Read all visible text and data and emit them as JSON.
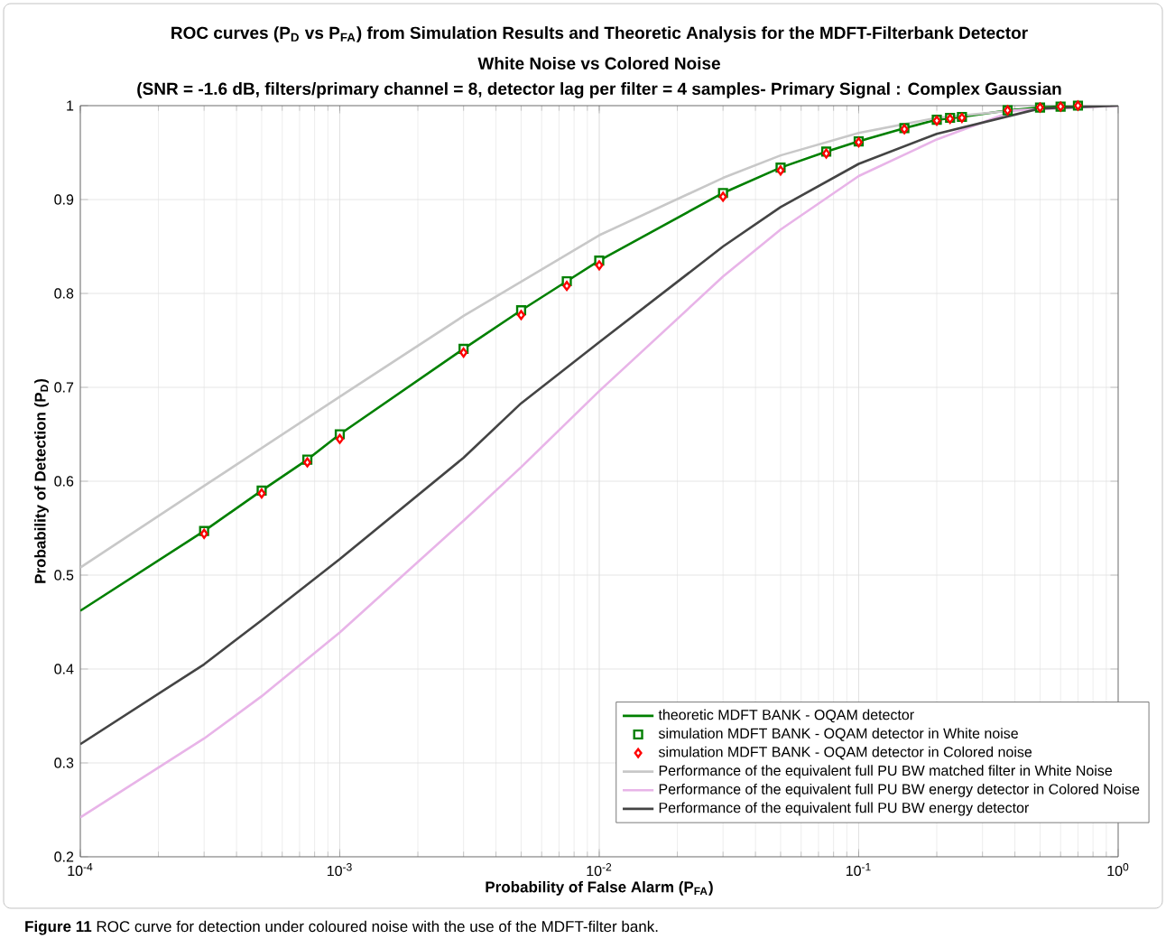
{
  "chart_data": {
    "type": "line",
    "title": "ROC curves (P$_{D}$ vs P$_{FA}$) from Simulation Results and Theoretic Analysis for the MDFT-Filterbank Detector",
    "subtitle": "White Noise vs Colored Noise",
    "annotations": [
      "(SNR = -1.6 dB, filters/primary channel = 8, detector lag per filter = 4 samples- Primary Signal : Complex Gaussian",
      "**Figure 11** ROC curve for detection under coloured noise with the use of the MDFT-filter bank."
    ],
    "xlabel": "Probability of False Alarm (P$_{FA}$)",
    "ylabel": "Probability of Detection (P$_{D}$)",
    "log": "x",
    "grid": true,
    "legend": "bottom right",
    "xlim": [
      0.0001,
      1
    ],
    "ylim": [
      0.2,
      1
    ],
    "xticks": [
      {
        "value": 0.0001,
        "label": "10$^{-4}$"
      },
      {
        "value": 0.001,
        "label": "10$^{-3}$"
      },
      {
        "value": 0.01,
        "label": "10$^{-2}$"
      },
      {
        "value": 0.1,
        "label": "10$^{-1}$"
      },
      {
        "value": 1,
        "label": "10$^{0}$"
      }
    ],
    "yticks": [
      0.2,
      0.3,
      0.4,
      0.5,
      0.6,
      0.7,
      0.8,
      0.9,
      1
    ],
    "series": [
      {
        "name": "theoretic MDFT BANK - OQAM detector",
        "type": "line",
        "color": "#008000",
        "marker": "none",
        "x": [
          0.0001,
          0.0003,
          0.0005,
          0.00075,
          0.001,
          0.003,
          0.005,
          0.0075,
          0.01,
          0.03,
          0.05,
          0.075,
          0.1,
          0.15,
          0.2,
          0.25,
          0.375,
          0.5,
          0.7
        ],
        "values": [
          0.462,
          0.547,
          0.59,
          0.623,
          0.65,
          0.741,
          0.782,
          0.813,
          0.835,
          0.907,
          0.934,
          0.951,
          0.962,
          0.976,
          0.985,
          0.988,
          0.995,
          0.998,
          1.0
        ]
      },
      {
        "name": "simulation MDFT BANK - OQAM detector in White noise",
        "type": "scatter",
        "color": "#008000",
        "marker": "square",
        "x": [
          0.0003,
          0.0005,
          0.00075,
          0.001,
          0.003,
          0.005,
          0.0075,
          0.01,
          0.03,
          0.05,
          0.075,
          0.1,
          0.15,
          0.2,
          0.225,
          0.25,
          0.375,
          0.5,
          0.6,
          0.7
        ],
        "values": [
          0.547,
          0.59,
          0.623,
          0.65,
          0.741,
          0.782,
          0.813,
          0.835,
          0.907,
          0.934,
          0.951,
          0.962,
          0.976,
          0.985,
          0.987,
          0.988,
          0.995,
          0.998,
          0.999,
          1.0
        ]
      },
      {
        "name": "simulation MDFT BANK - OQAM detector in Colored noise",
        "type": "scatter",
        "color": "#ff0000",
        "marker": "diamond",
        "x": [
          0.0003,
          0.0005,
          0.00075,
          0.001,
          0.003,
          0.005,
          0.0075,
          0.01,
          0.03,
          0.05,
          0.075,
          0.1,
          0.15,
          0.2,
          0.225,
          0.25,
          0.375,
          0.5,
          0.6,
          0.7
        ],
        "values": [
          0.544,
          0.587,
          0.62,
          0.645,
          0.737,
          0.777,
          0.808,
          0.83,
          0.903,
          0.931,
          0.949,
          0.961,
          0.975,
          0.984,
          0.986,
          0.987,
          0.995,
          0.998,
          0.999,
          1.0
        ]
      },
      {
        "name": "Performance of the equivalent full PU BW matched filter in White Noise",
        "type": "line",
        "color": "#c8c8c8",
        "marker": "none",
        "x": [
          0.0001,
          0.0003,
          0.001,
          0.003,
          0.01,
          0.03,
          0.05,
          0.1,
          0.2,
          0.4,
          1
        ],
        "values": [
          0.508,
          0.595,
          0.69,
          0.776,
          0.862,
          0.923,
          0.947,
          0.971,
          0.987,
          0.995,
          1.0
        ]
      },
      {
        "name": "Performance of the equivalent full PU BW energy detector in Colored Noise",
        "type": "line",
        "color": "#e8b4e8",
        "marker": "none",
        "x": [
          0.0001,
          0.0003,
          0.0005,
          0.001,
          0.003,
          0.005,
          0.01,
          0.03,
          0.05,
          0.1,
          0.2,
          0.4,
          1
        ],
        "values": [
          0.242,
          0.326,
          0.371,
          0.439,
          0.558,
          0.615,
          0.696,
          0.818,
          0.868,
          0.925,
          0.964,
          0.995,
          1.0
        ]
      },
      {
        "name": "Performance of the equivalent full PU BW energy detector",
        "type": "line",
        "color": "#444444",
        "marker": "none",
        "x": [
          0.0001,
          0.0003,
          0.0005,
          0.001,
          0.003,
          0.005,
          0.01,
          0.03,
          0.05,
          0.1,
          0.2,
          0.5,
          1
        ],
        "values": [
          0.32,
          0.405,
          0.452,
          0.517,
          0.625,
          0.683,
          0.748,
          0.85,
          0.892,
          0.938,
          0.97,
          0.997,
          1.0
        ]
      }
    ]
  }
}
